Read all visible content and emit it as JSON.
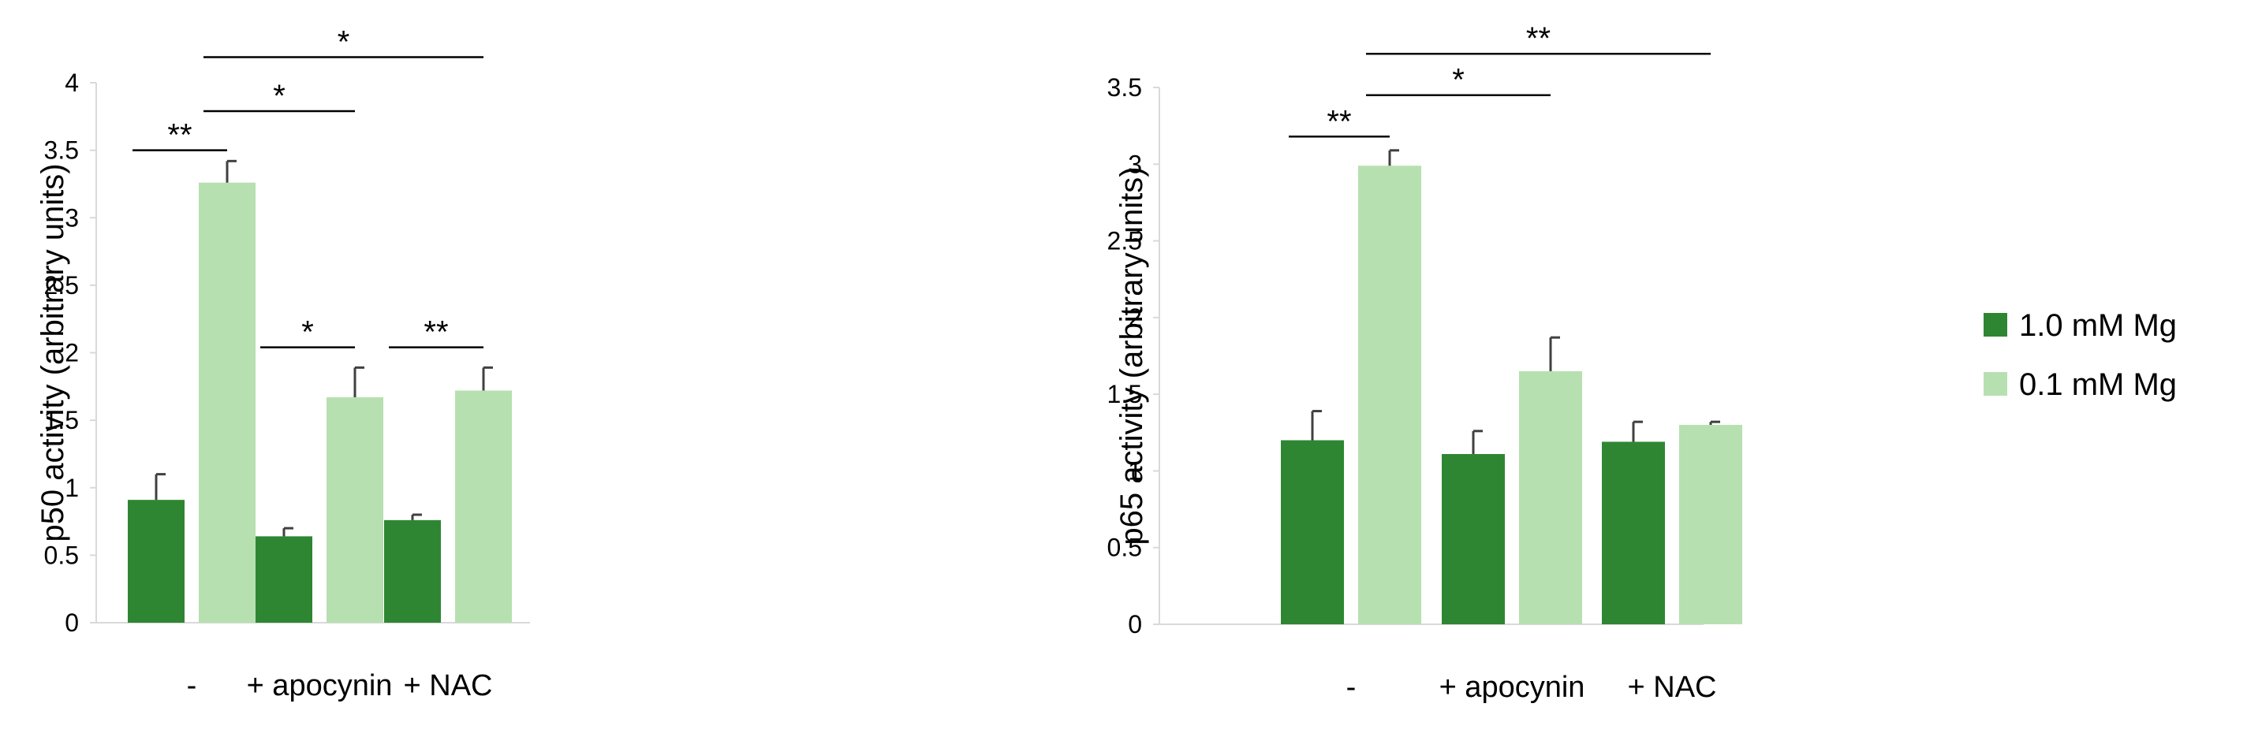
{
  "chart_data": [
    {
      "type": "bar",
      "title": "",
      "xlabel": "",
      "ylabel": "p50 activity (arbitrary units)",
      "categories": [
        "-",
        "+ apocynin",
        "+ NAC"
      ],
      "ylim": [
        0,
        4
      ],
      "yticks": [
        0,
        0.5,
        1,
        1.5,
        2,
        2.5,
        3,
        3.5,
        4
      ],
      "ytick_labels": [
        "0",
        "0.5",
        "1",
        "1.5",
        "2",
        "2.5",
        "3",
        "3.5",
        "4"
      ],
      "grid": false,
      "series": [
        {
          "name": "1.0 mM Mg",
          "values": [
            0.91,
            0.64,
            0.76
          ],
          "errors": [
            0.19,
            0.06,
            0.04
          ]
        },
        {
          "name": "0.1 mM Mg",
          "values": [
            3.26,
            1.67,
            1.72
          ],
          "errors": [
            0.16,
            0.22,
            0.17
          ]
        }
      ],
      "annotations": [
        {
          "label": "**",
          "from": [
            0,
            0
          ],
          "to": [
            0,
            1
          ],
          "y": 3.5
        },
        {
          "label": "*",
          "from": [
            0,
            1
          ],
          "to": [
            1,
            1
          ],
          "y": 3.79
        },
        {
          "label": "*",
          "from": [
            0,
            1
          ],
          "to": [
            2,
            1
          ],
          "y": 4.19
        },
        {
          "label": "*",
          "from": [
            1,
            0
          ],
          "to": [
            1,
            1
          ],
          "y": 2.04
        },
        {
          "label": "**",
          "from": [
            2,
            0
          ],
          "to": [
            2,
            1
          ],
          "y": 2.04
        }
      ]
    },
    {
      "type": "bar",
      "title": "",
      "xlabel": "",
      "ylabel": "p65 activity (arbitrary units)",
      "categories": [
        "-",
        "+ apocynin",
        "+ NAC"
      ],
      "ylim": [
        0,
        3.5
      ],
      "yticks": [
        0,
        0.5,
        1,
        1.5,
        2,
        2.5,
        3,
        3.5
      ],
      "ytick_labels": [
        "0",
        "0.5",
        "1",
        "1.5",
        "2",
        "2.5",
        "3",
        "3.5"
      ],
      "grid": false,
      "series": [
        {
          "name": "1.0 mM Mg",
          "values": [
            1.2,
            1.11,
            1.19
          ],
          "errors": [
            0.19,
            0.15,
            0.13
          ]
        },
        {
          "name": "0.1 mM Mg",
          "values": [
            2.99,
            1.65,
            1.3
          ],
          "errors": [
            0.1,
            0.22,
            0.02
          ]
        }
      ],
      "annotations": [
        {
          "label": "**",
          "from": [
            0,
            0
          ],
          "to": [
            0,
            1
          ],
          "y": 3.18
        },
        {
          "label": "*",
          "from": [
            0,
            1
          ],
          "to": [
            1,
            1
          ],
          "y": 3.45
        },
        {
          "label": "**",
          "from": [
            0,
            1
          ],
          "to": [
            2,
            1
          ],
          "y": 3.72
        }
      ]
    }
  ],
  "legend": {
    "position": "right",
    "items": [
      {
        "label": "1.0 mM Mg",
        "color": "#2e8632"
      },
      {
        "label": "0.1 mM Mg",
        "color": "#b7e0b0"
      }
    ]
  },
  "colors": {
    "series": [
      "#2e8632",
      "#b7e0b0"
    ],
    "axis": "#d9d9d9",
    "error_bar": "#404040",
    "text": "#000000"
  }
}
